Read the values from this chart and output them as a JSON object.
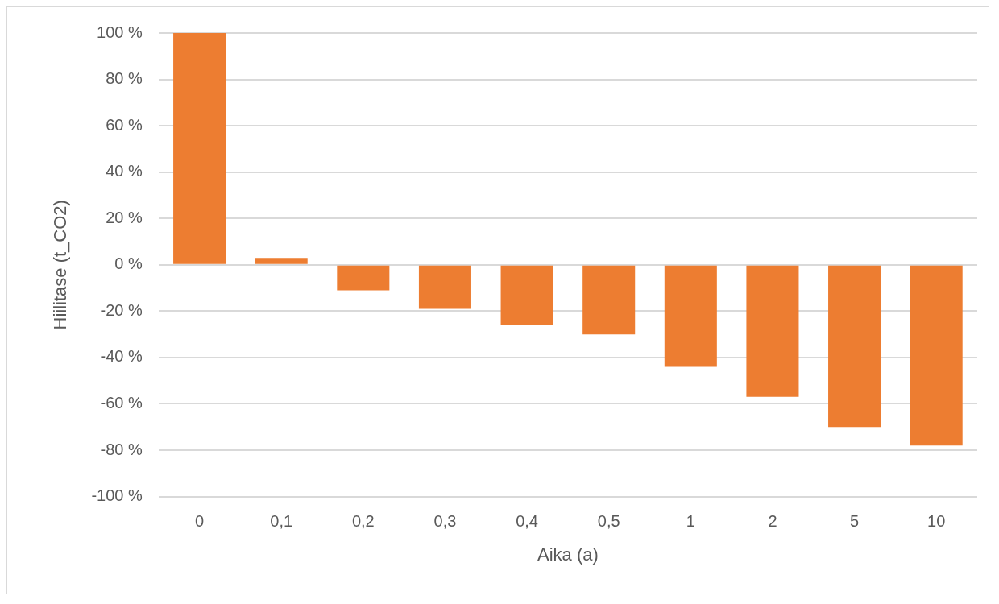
{
  "chart_data": {
    "type": "bar",
    "xlabel": "Aika (a)",
    "ylabel": "Hiilitase (t_CO2)",
    "categories": [
      "0",
      "0,1",
      "0,2",
      "0,3",
      "0,4",
      "0,5",
      "1",
      "2",
      "5",
      "10"
    ],
    "values": [
      100,
      3,
      -11,
      -19,
      -26,
      -30,
      -44,
      -57,
      -70,
      -78
    ],
    "color": "#ed7d31",
    "ylim": [
      -100,
      100
    ],
    "yticks": [
      {
        "value": -100,
        "label": "-100 %"
      },
      {
        "value": -80,
        "label": "-80 %"
      },
      {
        "value": -60,
        "label": "-60 %"
      },
      {
        "value": -40,
        "label": "-40 %"
      },
      {
        "value": -20,
        "label": "-20 %"
      },
      {
        "value": 0,
        "label": "0 %"
      },
      {
        "value": 20,
        "label": "20 %"
      },
      {
        "value": 40,
        "label": "40 %"
      },
      {
        "value": 60,
        "label": "60 %"
      },
      {
        "value": 80,
        "label": "80 %"
      },
      {
        "value": 100,
        "label": "100 %"
      }
    ],
    "grid": "y",
    "legend": false
  }
}
